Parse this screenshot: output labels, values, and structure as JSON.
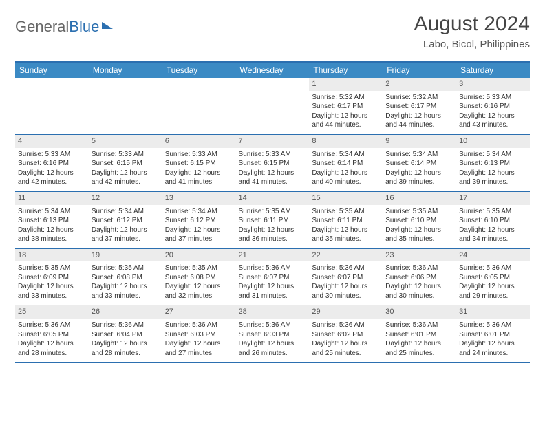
{
  "brand": {
    "part1": "General",
    "part2": "Blue"
  },
  "title": "August 2024",
  "location": "Labo, Bicol, Philippines",
  "header_bg": "#3b8ac4",
  "border_color": "#2b6fb0",
  "daynum_bg": "#ececec",
  "weekdays": [
    "Sunday",
    "Monday",
    "Tuesday",
    "Wednesday",
    "Thursday",
    "Friday",
    "Saturday"
  ],
  "weeks": [
    [
      null,
      null,
      null,
      null,
      {
        "n": "1",
        "sr": "5:32 AM",
        "ss": "6:17 PM",
        "dl": "12 hours and 44 minutes."
      },
      {
        "n": "2",
        "sr": "5:32 AM",
        "ss": "6:17 PM",
        "dl": "12 hours and 44 minutes."
      },
      {
        "n": "3",
        "sr": "5:33 AM",
        "ss": "6:16 PM",
        "dl": "12 hours and 43 minutes."
      }
    ],
    [
      {
        "n": "4",
        "sr": "5:33 AM",
        "ss": "6:16 PM",
        "dl": "12 hours and 42 minutes."
      },
      {
        "n": "5",
        "sr": "5:33 AM",
        "ss": "6:15 PM",
        "dl": "12 hours and 42 minutes."
      },
      {
        "n": "6",
        "sr": "5:33 AM",
        "ss": "6:15 PM",
        "dl": "12 hours and 41 minutes."
      },
      {
        "n": "7",
        "sr": "5:33 AM",
        "ss": "6:15 PM",
        "dl": "12 hours and 41 minutes."
      },
      {
        "n": "8",
        "sr": "5:34 AM",
        "ss": "6:14 PM",
        "dl": "12 hours and 40 minutes."
      },
      {
        "n": "9",
        "sr": "5:34 AM",
        "ss": "6:14 PM",
        "dl": "12 hours and 39 minutes."
      },
      {
        "n": "10",
        "sr": "5:34 AM",
        "ss": "6:13 PM",
        "dl": "12 hours and 39 minutes."
      }
    ],
    [
      {
        "n": "11",
        "sr": "5:34 AM",
        "ss": "6:13 PM",
        "dl": "12 hours and 38 minutes."
      },
      {
        "n": "12",
        "sr": "5:34 AM",
        "ss": "6:12 PM",
        "dl": "12 hours and 37 minutes."
      },
      {
        "n": "13",
        "sr": "5:34 AM",
        "ss": "6:12 PM",
        "dl": "12 hours and 37 minutes."
      },
      {
        "n": "14",
        "sr": "5:35 AM",
        "ss": "6:11 PM",
        "dl": "12 hours and 36 minutes."
      },
      {
        "n": "15",
        "sr": "5:35 AM",
        "ss": "6:11 PM",
        "dl": "12 hours and 35 minutes."
      },
      {
        "n": "16",
        "sr": "5:35 AM",
        "ss": "6:10 PM",
        "dl": "12 hours and 35 minutes."
      },
      {
        "n": "17",
        "sr": "5:35 AM",
        "ss": "6:10 PM",
        "dl": "12 hours and 34 minutes."
      }
    ],
    [
      {
        "n": "18",
        "sr": "5:35 AM",
        "ss": "6:09 PM",
        "dl": "12 hours and 33 minutes."
      },
      {
        "n": "19",
        "sr": "5:35 AM",
        "ss": "6:08 PM",
        "dl": "12 hours and 33 minutes."
      },
      {
        "n": "20",
        "sr": "5:35 AM",
        "ss": "6:08 PM",
        "dl": "12 hours and 32 minutes."
      },
      {
        "n": "21",
        "sr": "5:36 AM",
        "ss": "6:07 PM",
        "dl": "12 hours and 31 minutes."
      },
      {
        "n": "22",
        "sr": "5:36 AM",
        "ss": "6:07 PM",
        "dl": "12 hours and 30 minutes."
      },
      {
        "n": "23",
        "sr": "5:36 AM",
        "ss": "6:06 PM",
        "dl": "12 hours and 30 minutes."
      },
      {
        "n": "24",
        "sr": "5:36 AM",
        "ss": "6:05 PM",
        "dl": "12 hours and 29 minutes."
      }
    ],
    [
      {
        "n": "25",
        "sr": "5:36 AM",
        "ss": "6:05 PM",
        "dl": "12 hours and 28 minutes."
      },
      {
        "n": "26",
        "sr": "5:36 AM",
        "ss": "6:04 PM",
        "dl": "12 hours and 28 minutes."
      },
      {
        "n": "27",
        "sr": "5:36 AM",
        "ss": "6:03 PM",
        "dl": "12 hours and 27 minutes."
      },
      {
        "n": "28",
        "sr": "5:36 AM",
        "ss": "6:03 PM",
        "dl": "12 hours and 26 minutes."
      },
      {
        "n": "29",
        "sr": "5:36 AM",
        "ss": "6:02 PM",
        "dl": "12 hours and 25 minutes."
      },
      {
        "n": "30",
        "sr": "5:36 AM",
        "ss": "6:01 PM",
        "dl": "12 hours and 25 minutes."
      },
      {
        "n": "31",
        "sr": "5:36 AM",
        "ss": "6:01 PM",
        "dl": "12 hours and 24 minutes."
      }
    ]
  ],
  "labels": {
    "sunrise": "Sunrise: ",
    "sunset": "Sunset: ",
    "daylight": "Daylight: "
  }
}
